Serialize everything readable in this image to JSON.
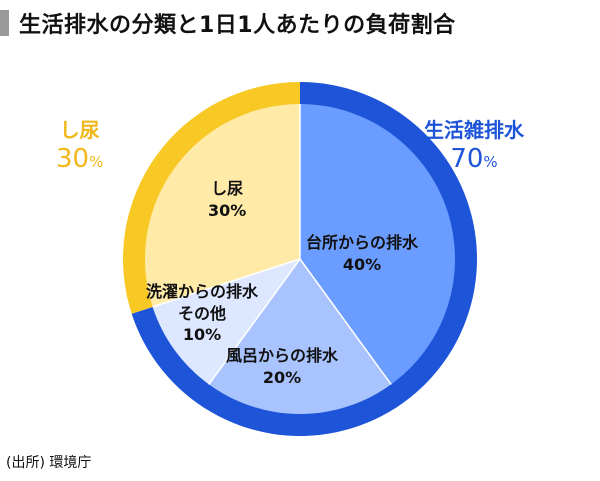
{
  "title": "生活排水の分類と1日1人あたりの負荷割合",
  "source": "(出所) 環境庁",
  "outer_labels": {
    "human_waste": {
      "name": "し尿",
      "value": "30",
      "unit": "%"
    },
    "gray_water": {
      "name": "生活雑排水",
      "value": "70",
      "unit": "%"
    }
  },
  "chart_data": {
    "type": "pie",
    "title": "生活排水の分類と1日1人あたりの負荷割合",
    "slices": [
      {
        "label": "台所からの排水",
        "value": 40,
        "display": "40%",
        "color": "#6b9cff",
        "group": "生活雑排水"
      },
      {
        "label": "風呂からの排水",
        "value": 20,
        "display": "20%",
        "color": "#a9c3ff",
        "group": "生活雑排水"
      },
      {
        "label": "洗濯からの排水 その他",
        "line1": "洗濯からの排水",
        "line2": "その他",
        "value": 10,
        "display": "10%",
        "color": "#dde7ff",
        "group": "生活雑排水"
      },
      {
        "label": "し尿",
        "value": 30,
        "display": "30%",
        "color": "#ffeaa8",
        "group": "し尿"
      }
    ],
    "outer_ring": [
      {
        "label": "生活雑排水",
        "value": 70,
        "color": "#1e54d8"
      },
      {
        "label": "し尿",
        "value": 30,
        "color": "#f8c925"
      }
    ]
  }
}
